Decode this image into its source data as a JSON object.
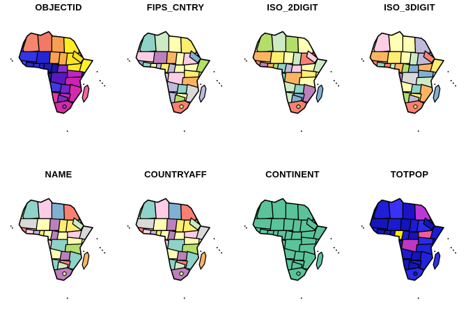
{
  "figure": {
    "background": "#FFFFFF",
    "text_color": "#000000",
    "border_color": "#000000"
  },
  "chart_data": {
    "type": "choropleth",
    "layout": "small multiples, 2 rows x 4 columns, white background, no legend, no axes",
    "geography": "Africa country polygons incl. Madagascar, Lesotho ring, and islet dots (Cape Verde, Seychelles, Comoros, Mauritius/Reunion, St Helena)",
    "facets": [
      {
        "title": "OBJECTID",
        "scale": "sequential numeric: blue (low) -> purple/magenta -> salmon/orange -> yellow (high)",
        "default_fill": "#4533D6",
        "fills": {
          "base": "#4533D6",
          "morocco": "#F5856C",
          "algeria": "#F27965",
          "libya": "#F99F52",
          "egypt": "#FFEB26",
          "mauritania": "#3434E8",
          "mali": "#2525D8",
          "niger": "#F9A251",
          "chad": "#FBAD4A",
          "sudan": "#FFE51F",
          "senegal": "#4343F2",
          "guinea": "#2A2ACD",
          "ivory-coast": "#3030E0",
          "ghana": "#2222C4",
          "nigeria": "#1D1DB2",
          "cameroon": "#18189E",
          "eritrea": "#FFDD22",
          "ethiopia": "#FFEB26",
          "somalia": "#FFF42A",
          "car": "#8A2BD0",
          "gabon": "#24249E",
          "drc": "#5A18C0",
          "uganda-kenya": "#C322C8",
          "tanzania": "#CB21B5",
          "angola": "#4038E0",
          "zambia": "#7326D2",
          "mozambique": "#D429AC",
          "zimbabwe": "#C22CC2",
          "namibia": "#E23B9E",
          "botswana": "#7E2ACA",
          "south-africa": "#D62BA2",
          "lesotho": "#9044D6",
          "madagascar": "#F4679F"
        }
      },
      {
        "title": "FIPS_CNTRY",
        "scale": "categorical pastel (Set3-like)",
        "default_fill": "#CCEBC5",
        "fills": {
          "base": "#CCEBC5",
          "morocco": "#8DD3C7",
          "algeria": "#CCEBC5",
          "libya": "#FFFFB3",
          "egypt": "#FFED6F",
          "mauritania": "#FCCDE5",
          "mali": "#BC80BD",
          "niger": "#FDB462",
          "chad": "#FFFFB3",
          "sudan": "#FCCDE5",
          "senegal": "#80B1D3",
          "guinea": "#8DD3C7",
          "ivory-coast": "#FFFFB3",
          "ghana": "#BEBADA",
          "nigeria": "#FFED6F",
          "cameroon": "#BEBADA",
          "eritrea": "#80B1D3",
          "ethiopia": "#FFFFB3",
          "somalia": "#B3DE69",
          "car": "#FFFFB3",
          "gabon": "#D9D9D9",
          "drc": "#FCCDE5",
          "uganda-kenya": "#FFED6F",
          "tanzania": "#FDB462",
          "angola": "#BEBADA",
          "zambia": "#8DD3C7",
          "mozambique": "#D9D9D9",
          "zimbabwe": "#FFFFB3",
          "namibia": "#BEBADA",
          "botswana": "#B3DE69",
          "south-africa": "#FB8072",
          "lesotho": "#FFED6F",
          "madagascar": "#BEBADA"
        }
      },
      {
        "title": "ISO_2DIGIT",
        "scale": "categorical pastel (Set3-like)",
        "default_fill": "#FFFFB3",
        "fills": {
          "base": "#FFFFB3",
          "morocco": "#B3DE69",
          "algeria": "#CCEBC5",
          "libya": "#B3DE69",
          "egypt": "#FFFFB3",
          "mauritania": "#FDB462",
          "mali": "#FFED6F",
          "niger": "#FFFFB3",
          "chad": "#CCEBC5",
          "sudan": "#FB8072",
          "senegal": "#FB8072",
          "guinea": "#BC80BD",
          "ivory-coast": "#FDB462",
          "ghana": "#B3DE69",
          "nigeria": "#8DD3C7",
          "cameroon": "#BEBADA",
          "eritrea": "#FCCDE5",
          "ethiopia": "#FFFFB3",
          "somalia": "#CCEBC5",
          "car": "#FCCDE5",
          "gabon": "#8DD3C7",
          "drc": "#FDB462",
          "uganda-kenya": "#FFED6F",
          "tanzania": "#FFFFB3",
          "angola": "#CCEBC5",
          "zambia": "#8DD3C7",
          "mozambique": "#BC80BD",
          "zimbabwe": "#80B1D3",
          "namibia": "#CCEBC5",
          "botswana": "#80B1D3",
          "south-africa": "#FB8072",
          "lesotho": "#B3DE69",
          "madagascar": "#80B1D3"
        }
      },
      {
        "title": "ISO_3DIGIT",
        "scale": "categorical pastel (Set3-like)",
        "default_fill": "#CCEBC5",
        "fills": {
          "base": "#CCEBC5",
          "morocco": "#FCCDE5",
          "algeria": "#FFFFB3",
          "libya": "#FFFFB3",
          "egypt": "#BEBADA",
          "mauritania": "#FDB462",
          "mali": "#FFED6F",
          "niger": "#FFFFB3",
          "chad": "#CCEBC5",
          "sudan": "#BEBADA",
          "senegal": "#FB8072",
          "guinea": "#8DD3C7",
          "ivory-coast": "#FB8072",
          "ghana": "#CCEBC5",
          "nigeria": "#FDB462",
          "cameroon": "#B3DE69",
          "eritrea": "#FB8072",
          "ethiopia": "#FDB462",
          "somalia": "#FFED6F",
          "car": "#80B1D3",
          "gabon": "#BC80BD",
          "drc": "#D9D9D9",
          "uganda-kenya": "#80B1D3",
          "tanzania": "#CCEBC5",
          "angola": "#FFFFB3",
          "zambia": "#8DD3C7",
          "mozambique": "#FDB462",
          "zimbabwe": "#FFED6F",
          "namibia": "#B3DE69",
          "botswana": "#BEBADA",
          "south-africa": "#FB8072",
          "lesotho": "#FFED6F",
          "madagascar": "#80B1D3"
        }
      },
      {
        "title": "NAME",
        "scale": "categorical pastel (Set3-like)",
        "default_fill": "#FFFFB3",
        "fills": {
          "base": "#FFFFB3",
          "morocco": "#8DD3C7",
          "algeria": "#FCCDE5",
          "libya": "#80B1D3",
          "egypt": "#FB8072",
          "mauritania": "#D9D9D9",
          "mali": "#FFFFB3",
          "niger": "#BC80BD",
          "chad": "#FFED6F",
          "sudan": "#FFED6F",
          "senegal": "#FB8072",
          "guinea": "#FCCDE5",
          "ivory-coast": "#BEBADA",
          "ghana": "#FFED6F",
          "nigeria": "#FFFFB3",
          "cameroon": "#BC80BD",
          "eritrea": "#CCEBC5",
          "ethiopia": "#FCCDE5",
          "somalia": "#D9D9D9",
          "car": "#FFFFB3",
          "gabon": "#FCCDE5",
          "drc": "#8DD3C7",
          "uganda-kenya": "#FFFFB3",
          "tanzania": "#B3DE69",
          "angola": "#FFFFB3",
          "zambia": "#BC80BD",
          "mozambique": "#8DD3C7",
          "zimbabwe": "#FB8072",
          "namibia": "#8DD3C7",
          "botswana": "#CCEBC5",
          "south-africa": "#BC80BD",
          "lesotho": "#FFFFB3",
          "madagascar": "#FDB462"
        }
      },
      {
        "title": "COUNTRYAFF",
        "scale": "categorical pastel (Set3-like), identical coloring to NAME facet",
        "default_fill": "#FFFFB3",
        "fills": {
          "base": "#FFFFB3",
          "morocco": "#8DD3C7",
          "algeria": "#FCCDE5",
          "libya": "#80B1D3",
          "egypt": "#FB8072",
          "mauritania": "#D9D9D9",
          "mali": "#FFFFB3",
          "niger": "#BC80BD",
          "chad": "#FFED6F",
          "sudan": "#FFED6F",
          "senegal": "#FB8072",
          "guinea": "#FCCDE5",
          "ivory-coast": "#BEBADA",
          "ghana": "#FFED6F",
          "nigeria": "#FFFFB3",
          "cameroon": "#BC80BD",
          "eritrea": "#CCEBC5",
          "ethiopia": "#FCCDE5",
          "somalia": "#D9D9D9",
          "car": "#FFFFB3",
          "gabon": "#FCCDE5",
          "drc": "#8DD3C7",
          "uganda-kenya": "#FFFFB3",
          "tanzania": "#B3DE69",
          "angola": "#FFFFB3",
          "zambia": "#BC80BD",
          "mozambique": "#8DD3C7",
          "zimbabwe": "#FB8072",
          "namibia": "#8DD3C7",
          "botswana": "#CCEBC5",
          "south-africa": "#BC80BD",
          "lesotho": "#FFFFB3",
          "madagascar": "#FDB462"
        }
      },
      {
        "title": "CONTINENT",
        "scale": "single category (Africa): every country the same green",
        "default_fill": "#5BC39A",
        "fills": {}
      },
      {
        "title": "TOTPOP",
        "scale": "sequential numeric: dark blue (low) -> magenta/pink -> yellow (high); Nigeria yellow, DR Congo & Egypt magenta, Ethiopia pink",
        "default_fill": "#1515BC",
        "fills": {
          "base": "#1515BC",
          "morocco": "#1F1FD8",
          "algeria": "#3B30F5",
          "libya": "#1C12C8",
          "egypt": "#BB38D6",
          "mauritania": "#1515BC",
          "mali": "#1A1ACE",
          "niger": "#1515BC",
          "chad": "#1C1CD2",
          "sudan": "#2B2BE8",
          "senegal": "#2222DC",
          "guinea": "#1515BC",
          "ivory-coast": "#1A1ACE",
          "ghana": "#1818C6",
          "nigeria": "#FFEB00",
          "cameroon": "#1A1ACE",
          "eritrea": "#1515BC",
          "ethiopia": "#F25B9C",
          "somalia": "#1C1CD2",
          "car": "#1515BC",
          "gabon": "#1515BC",
          "drc": "#C136C1",
          "uganda-kenya": "#2B2BE8",
          "tanzania": "#2222DC",
          "angola": "#1A1ACE",
          "zambia": "#1515BC",
          "mozambique": "#2222DC",
          "zimbabwe": "#1A1ACE",
          "namibia": "#1515BC",
          "botswana": "#1515BC",
          "south-africa": "#2B2BE8",
          "lesotho": "#1515BC",
          "madagascar": "#2F2FEF"
        }
      }
    ]
  }
}
